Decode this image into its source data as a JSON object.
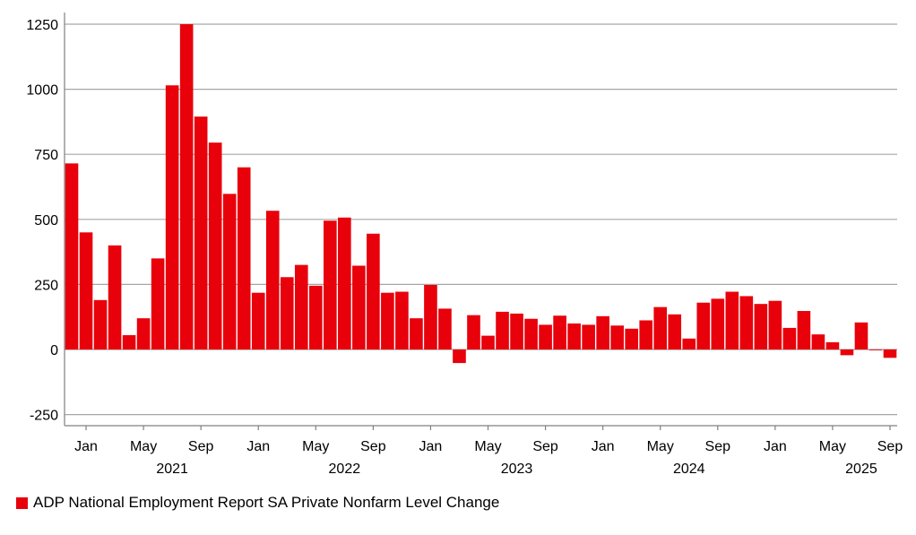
{
  "chart_data": {
    "type": "bar",
    "title": "",
    "xlabel": "",
    "ylabel": "",
    "x_start": "2020-12",
    "ylim": [
      -250,
      1250
    ],
    "yticks": [
      -250,
      0,
      250,
      500,
      750,
      1000,
      1250
    ],
    "grid": true,
    "legend_position": "bottom-left",
    "color": "#e8000b",
    "month_ticks": [
      {
        "label": "Jan",
        "index": 1
      },
      {
        "label": "May",
        "index": 5
      },
      {
        "label": "Sep",
        "index": 9
      },
      {
        "label": "Jan",
        "index": 13
      },
      {
        "label": "May",
        "index": 17
      },
      {
        "label": "Sep",
        "index": 21
      },
      {
        "label": "Jan",
        "index": 25
      },
      {
        "label": "May",
        "index": 29
      },
      {
        "label": "Sep",
        "index": 33
      },
      {
        "label": "Jan",
        "index": 37
      },
      {
        "label": "May",
        "index": 41
      },
      {
        "label": "Sep",
        "index": 45
      },
      {
        "label": "Jan",
        "index": 49
      },
      {
        "label": "May",
        "index": 53
      },
      {
        "label": "Sep",
        "index": 57
      }
    ],
    "year_labels": [
      {
        "label": "2021",
        "index": 7
      },
      {
        "label": "2022",
        "index": 19
      },
      {
        "label": "2023",
        "index": 31
      },
      {
        "label": "2024",
        "index": 43
      },
      {
        "label": "2025",
        "index": 55
      }
    ],
    "series": [
      {
        "name": "ADP National Employment Report SA Private Nonfarm Level Change",
        "values": [
          715,
          450,
          190,
          400,
          55,
          120,
          350,
          1015,
          1250,
          895,
          795,
          598,
          700,
          218,
          533,
          278,
          325,
          245,
          495,
          507,
          322,
          445,
          218,
          222,
          120,
          248,
          157,
          -52,
          132,
          53,
          145,
          138,
          118,
          95,
          130,
          100,
          95,
          128,
          92,
          80,
          112,
          163,
          135,
          42,
          180,
          195,
          222,
          205,
          175,
          187,
          83,
          148,
          58,
          28,
          -22,
          104,
          -3,
          -32
        ]
      }
    ]
  }
}
